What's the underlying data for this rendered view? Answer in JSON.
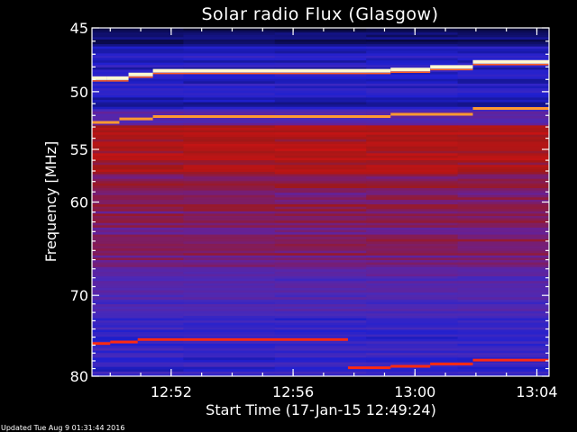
{
  "chart_data": {
    "type": "heatmap",
    "title": "Solar radio Flux (Glasgow)",
    "xlabel": "Start Time (17-Jan-15 12:49:24)",
    "ylabel": "Frequency [MHz]",
    "x_tick_labels": [
      "12:52",
      "12:56",
      "13:00",
      "13:04"
    ],
    "x_ticks_minutes_after_start": [
      2.6,
      6.6,
      10.6,
      14.6
    ],
    "x_range_minutes_after_start": [
      0,
      15.0
    ],
    "y_tick_labels": [
      "45",
      "50",
      "55",
      "60",
      "70",
      "80"
    ],
    "y_ticks": [
      45,
      50,
      55,
      60,
      70,
      80
    ],
    "ylim": [
      45,
      80
    ],
    "y_scale": "log",
    "y_inverted": true,
    "colormap": [
      "#000010",
      "#101070",
      "#2020d0",
      "#4a2ab8",
      "#6a2090",
      "#a01818",
      "#e01010",
      "#ff8020",
      "#ffffc8"
    ],
    "emission_lines": [
      {
        "segments": [
          [
            0,
            0.5,
            48.9
          ],
          [
            0.5,
            1.2,
            48.9
          ],
          [
            1.2,
            2.0,
            48.6
          ],
          [
            2.0,
            9.8,
            48.3
          ],
          [
            9.8,
            11.1,
            48.2
          ],
          [
            11.1,
            12.5,
            48.0
          ],
          [
            12.5,
            15.0,
            47.6
          ]
        ],
        "intensity": 1.0
      },
      {
        "segments": [
          [
            0,
            0.9,
            52.6
          ],
          [
            0.9,
            2.0,
            52.3
          ],
          [
            2.0,
            9.8,
            52.1
          ],
          [
            9.8,
            12.5,
            51.9
          ],
          [
            12.5,
            15.0,
            51.4
          ]
        ],
        "intensity": 0.85
      },
      {
        "segments": [
          [
            0,
            0.6,
            75.8
          ],
          [
            0.6,
            1.5,
            75.6
          ],
          [
            1.5,
            8.4,
            75.3
          ],
          [
            8.4,
            9.8,
            78.9
          ],
          [
            9.8,
            11.1,
            78.7
          ],
          [
            11.1,
            12.5,
            78.4
          ],
          [
            12.5,
            15.0,
            77.9
          ]
        ],
        "intensity": 0.6
      }
    ]
  },
  "footer": {
    "updated": "Updated Tue Aug  9 01:31:44 2016"
  }
}
